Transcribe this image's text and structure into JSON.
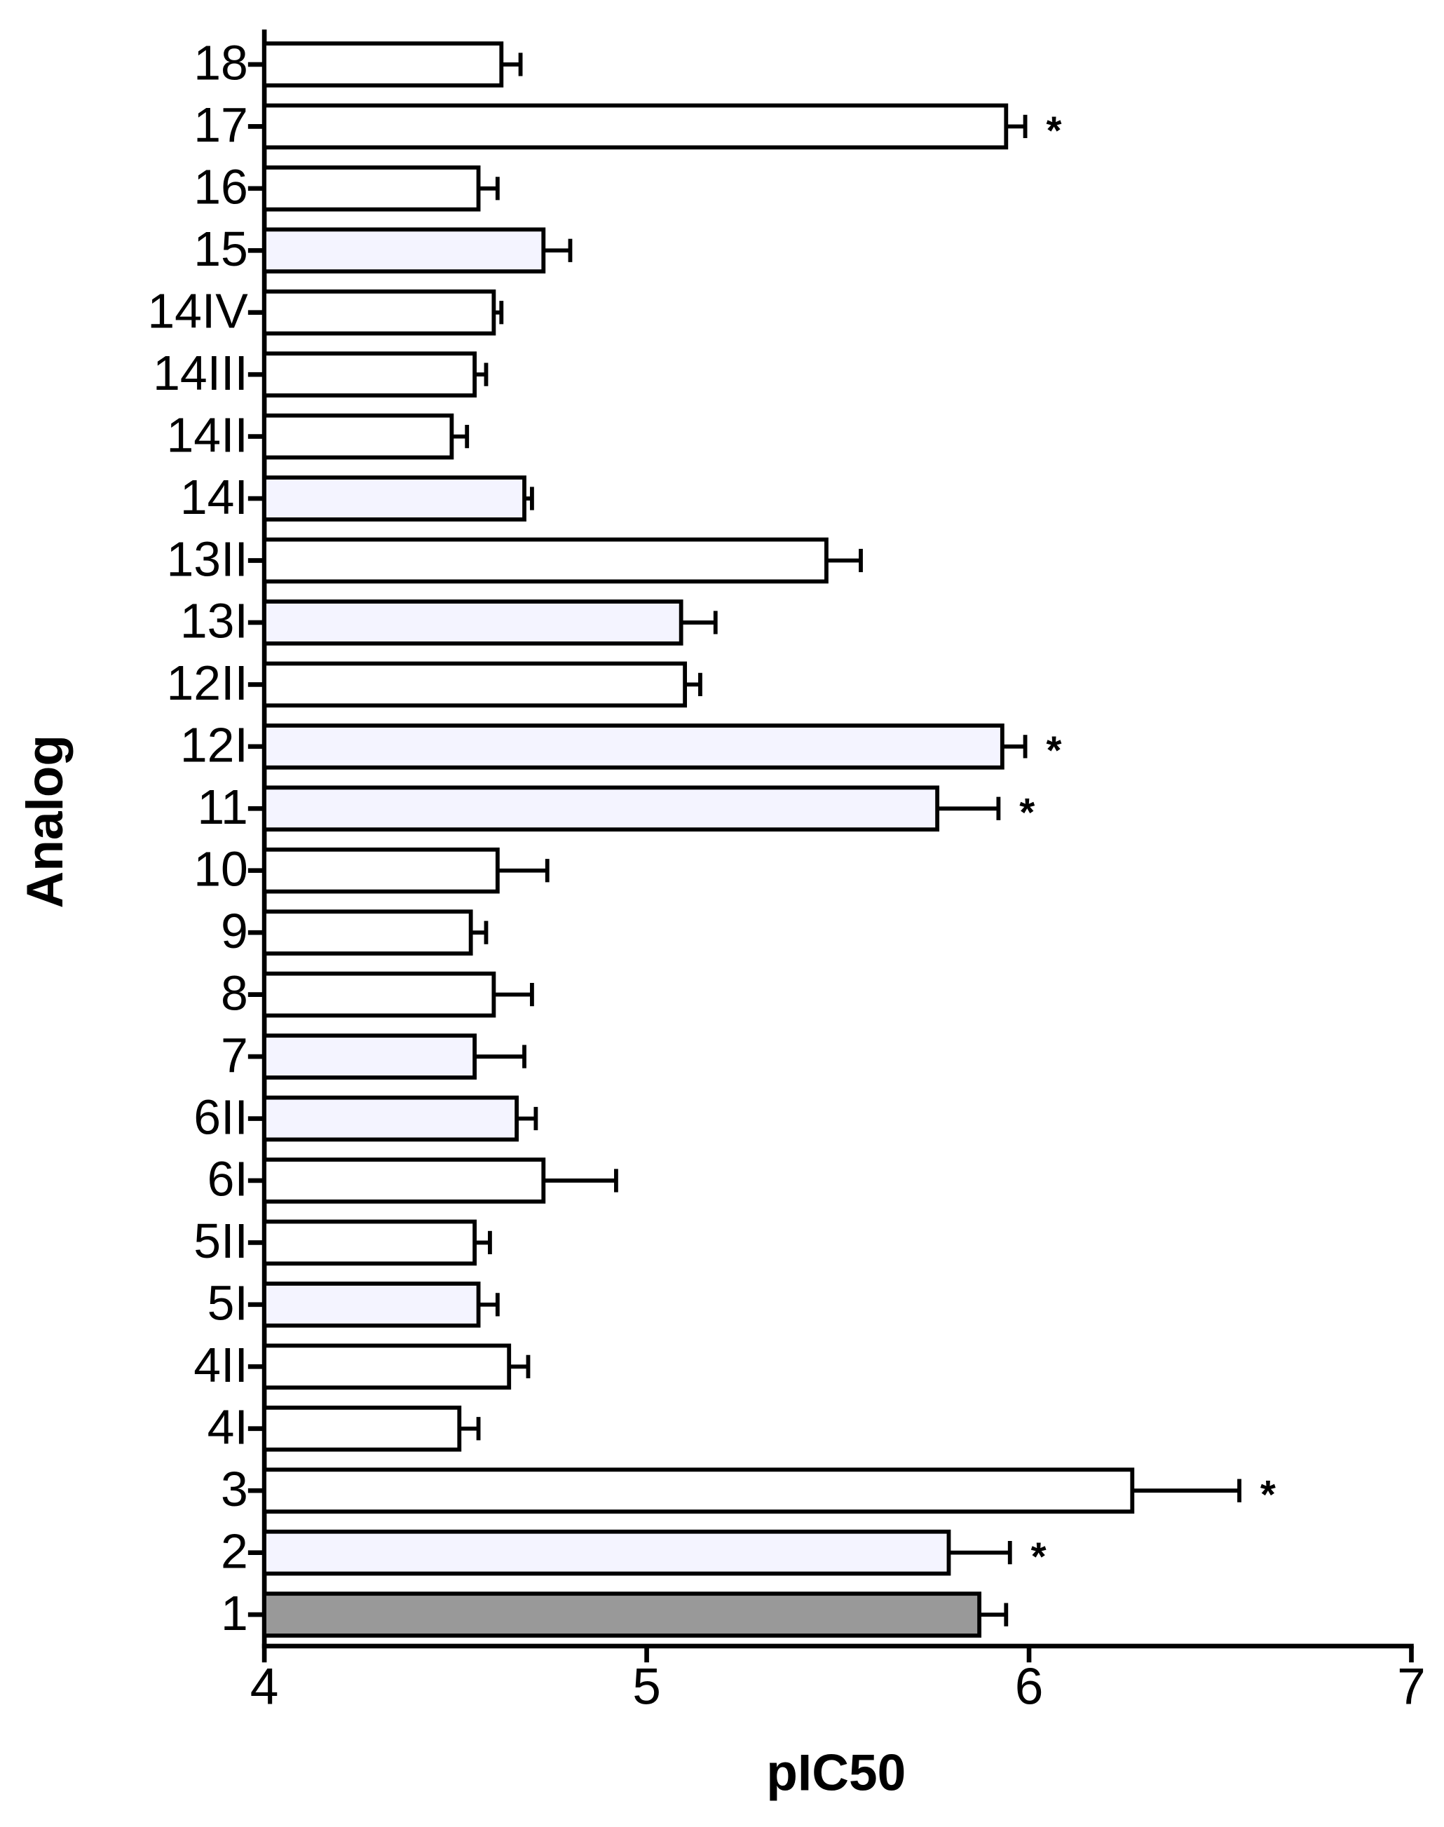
{
  "chart_data": {
    "type": "barh",
    "x_label": "pIC50",
    "y_label": "Analog",
    "categories": [
      "1",
      "2",
      "3",
      "4I",
      "4II",
      "5I",
      "5II",
      "6I",
      "6II",
      "7",
      "8",
      "9",
      "10",
      "11",
      "12I",
      "12II",
      "13I",
      "13II",
      "14I",
      "14II",
      "14III",
      "14IV",
      "15",
      "16",
      "17",
      "18"
    ],
    "values": [
      5.87,
      5.79,
      6.27,
      4.51,
      4.64,
      4.56,
      4.55,
      4.73,
      4.66,
      4.55,
      4.6,
      4.54,
      4.61,
      5.76,
      5.93,
      5.1,
      5.09,
      5.47,
      4.68,
      4.49,
      4.55,
      4.6,
      4.73,
      4.56,
      5.94,
      4.62
    ],
    "errors": [
      0.07,
      0.16,
      0.28,
      0.05,
      0.05,
      0.05,
      0.04,
      0.19,
      0.05,
      0.13,
      0.1,
      0.04,
      0.13,
      0.16,
      0.06,
      0.04,
      0.09,
      0.09,
      0.02,
      0.04,
      0.03,
      0.02,
      0.07,
      0.05,
      0.05,
      0.05
    ],
    "colors": [
      "#999999",
      "#f4f4ff",
      "#ffffff",
      "#ffffff",
      "#ffffff",
      "#f4f4ff",
      "#ffffff",
      "#ffffff",
      "#f4f4ff",
      "#f4f4ff",
      "#ffffff",
      "#ffffff",
      "#ffffff",
      "#f4f4ff",
      "#f4f4ff",
      "#ffffff",
      "#f4f4ff",
      "#ffffff",
      "#f4f4ff",
      "#ffffff",
      "#ffffff",
      "#ffffff",
      "#f4f4ff",
      "#ffffff",
      "#ffffff",
      "#ffffff"
    ],
    "markers": [
      null,
      "*",
      "*",
      null,
      null,
      null,
      null,
      null,
      null,
      null,
      null,
      null,
      null,
      "*",
      "*",
      null,
      null,
      null,
      null,
      null,
      null,
      null,
      null,
      null,
      "*",
      null
    ],
    "xlim": [
      4,
      7
    ],
    "xticks": [
      4,
      5,
      6,
      7
    ]
  }
}
